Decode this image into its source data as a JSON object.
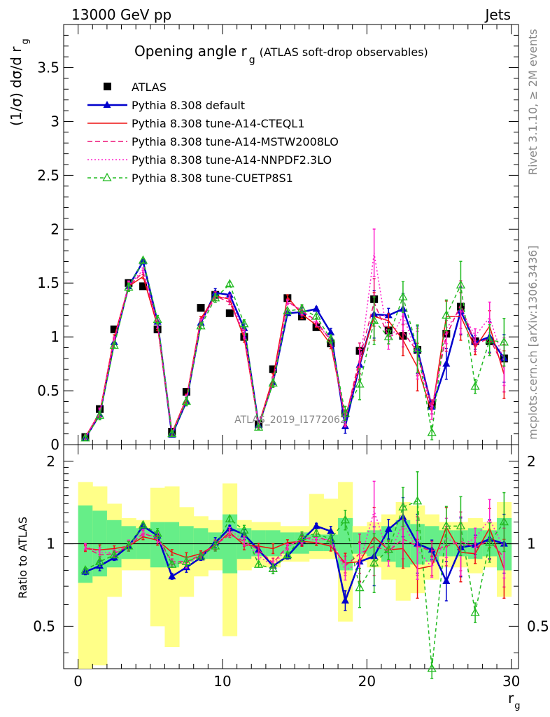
{
  "header": {
    "energy_label": "13000 GeV pp",
    "process_label": "Jets"
  },
  "side": {
    "rivet_label": "Rivet 3.1.10, ≥ 2M events",
    "mcplots_label": "mcplots.cern.ch [arXiv:1306.3436]"
  },
  "chart_data": [
    {
      "type": "line",
      "title": "Opening angle r",
      "title_subscript": "g",
      "title_suffix": "(ATLAS soft-drop observables)",
      "watermark": "ATLAS_2019_I1772062",
      "ylabel": "(1/σ) dσ/d r",
      "ylabel_subscript": "g",
      "xlim": [
        -1,
        30.5
      ],
      "ylim": [
        0,
        3.9
      ],
      "y_ticks": [
        0,
        0.5,
        1,
        1.5,
        2,
        2.5,
        3,
        3.5
      ],
      "y_tick_labels": [
        "0",
        "0.5",
        "1",
        "1.5",
        "2",
        "2.5",
        "3",
        "3.5"
      ],
      "legend_position": "top-left",
      "x": [
        0.5,
        1.5,
        2.5,
        3.5,
        4.5,
        5.5,
        6.5,
        7.5,
        8.5,
        9.5,
        10.5,
        11.5,
        12.5,
        13.5,
        14.5,
        15.5,
        16.5,
        17.5,
        18.5,
        19.5,
        20.5,
        21.5,
        22.5,
        23.5,
        24.5,
        25.5,
        26.5,
        27.5,
        28.5,
        29.5
      ],
      "series": [
        {
          "name": "ATLAS",
          "color": "#000000",
          "marker": "square",
          "values": [
            0.07,
            0.33,
            1.07,
            1.5,
            1.47,
            1.07,
            0.12,
            0.49,
            1.27,
            1.39,
            1.22,
            1.0,
            0.19,
            0.7,
            1.36,
            1.19,
            1.09,
            0.94,
            0.29,
            0.87,
            1.35,
            1.06,
            1.01,
            0.88,
            0.37,
            1.03,
            1.28,
            0.96,
            0.96,
            0.8
          ]
        },
        {
          "name": "Pythia 8.308 default",
          "color": "#0000cc",
          "marker": "triangle-filled",
          "dash": "",
          "values": [
            0.06,
            0.28,
            0.95,
            1.47,
            1.7,
            1.14,
            0.09,
            0.4,
            1.13,
            1.41,
            1.39,
            1.08,
            0.18,
            0.58,
            1.22,
            1.23,
            1.26,
            1.04,
            0.17,
            0.74,
            1.21,
            1.2,
            1.26,
            0.88,
            0.35,
            0.75,
            1.24,
            0.95,
            1.0,
            0.8
          ]
        },
        {
          "name": "Pythia 8.308 tune-A14-CTEQL1",
          "color": "#ee1111",
          "marker": "none",
          "dash": "",
          "values": [
            0.07,
            0.3,
            1.0,
            1.47,
            1.56,
            1.1,
            0.11,
            0.43,
            1.17,
            1.38,
            1.35,
            0.99,
            0.18,
            0.62,
            1.37,
            1.21,
            1.11,
            0.93,
            0.25,
            0.75,
            1.19,
            1.15,
            0.97,
            0.72,
            0.3,
            1.19,
            1.19,
            0.9,
            1.1,
            0.65
          ]
        },
        {
          "name": "Pythia 8.308 tune-A14-MSTW2008LO",
          "color": "#ee1177",
          "marker": "none",
          "dash": "7,4",
          "values": [
            0.07,
            0.29,
            0.97,
            1.47,
            1.6,
            1.12,
            0.1,
            0.42,
            1.15,
            1.38,
            1.32,
            1.02,
            0.18,
            0.59,
            1.33,
            1.24,
            1.15,
            0.96,
            0.24,
            0.8,
            1.32,
            1.0,
            1.05,
            0.86,
            0.35,
            1.01,
            1.3,
            0.93,
            0.99,
            0.71
          ]
        },
        {
          "name": "Pythia 8.308 tune-A14-NNPDF2.3LO",
          "color": "#ff22cc",
          "marker": "none",
          "dash": "2,3",
          "values": [
            0.07,
            0.3,
            0.98,
            1.48,
            1.62,
            1.12,
            0.1,
            0.42,
            1.14,
            1.36,
            1.37,
            1.03,
            0.17,
            0.58,
            1.32,
            1.25,
            1.12,
            0.98,
            0.23,
            0.74,
            1.78,
            0.95,
            1.2,
            0.83,
            0.3,
            1.08,
            1.25,
            1.01,
            1.18,
            0.77
          ]
        },
        {
          "name": "Pythia 8.308 tune-CUETP8S1",
          "color": "#22bb22",
          "marker": "triangle-open",
          "dash": "5,4",
          "values": [
            0.06,
            0.27,
            0.92,
            1.46,
            1.71,
            1.16,
            0.1,
            0.4,
            1.1,
            1.36,
            1.49,
            1.12,
            0.16,
            0.57,
            1.24,
            1.26,
            1.19,
            0.98,
            0.29,
            0.56,
            1.15,
            1.0,
            1.37,
            0.89,
            0.11,
            1.2,
            1.48,
            0.54,
            0.97,
            0.95
          ]
        }
      ]
    },
    {
      "type": "line",
      "ylabel": "Ratio to ATLAS",
      "xlabel": "r",
      "xlabel_subscript": "g",
      "xlim": [
        -1,
        30.5
      ],
      "ylim": [
        0.35,
        2.3
      ],
      "log_scale_y": true,
      "y_ticks": [
        0.5,
        1,
        2
      ],
      "y_tick_labels": [
        "0.5",
        "1",
        "2"
      ],
      "x_ticks": [
        0,
        10,
        20,
        30
      ],
      "x_tick_labels": [
        "0",
        "10",
        "20",
        "30"
      ],
      "reference_line": 1,
      "x": [
        0.5,
        1.5,
        2.5,
        3.5,
        4.5,
        5.5,
        6.5,
        7.5,
        8.5,
        9.5,
        10.5,
        11.5,
        12.5,
        13.5,
        14.5,
        15.5,
        16.5,
        17.5,
        18.5,
        19.5,
        20.5,
        21.5,
        22.5,
        23.5,
        24.5,
        25.5,
        26.5,
        27.5,
        28.5,
        29.5
      ],
      "uncertainty_bands": {
        "inner_color": "#66ee88",
        "outer_color": "#ffff88",
        "inner_lo": [
          0.72,
          0.76,
          0.82,
          0.88,
          0.88,
          0.82,
          0.82,
          0.86,
          0.88,
          0.88,
          0.78,
          0.88,
          0.9,
          0.9,
          0.92,
          0.92,
          0.94,
          0.94,
          0.8,
          0.92,
          0.9,
          0.86,
          0.82,
          0.84,
          0.86,
          0.9,
          0.9,
          0.88,
          0.9,
          0.8
        ],
        "inner_hi": [
          1.38,
          1.32,
          1.22,
          1.16,
          1.14,
          1.2,
          1.2,
          1.16,
          1.14,
          1.1,
          1.28,
          1.14,
          1.12,
          1.12,
          1.1,
          1.1,
          1.08,
          1.08,
          1.24,
          1.1,
          1.12,
          1.16,
          1.22,
          1.18,
          1.16,
          1.12,
          1.12,
          1.14,
          1.12,
          1.24
        ],
        "outer_lo": [
          0.3,
          0.36,
          0.64,
          0.8,
          0.8,
          0.5,
          0.42,
          0.64,
          0.76,
          0.8,
          0.46,
          0.8,
          0.82,
          0.82,
          0.86,
          0.86,
          0.88,
          0.88,
          0.52,
          0.86,
          0.82,
          0.74,
          0.62,
          0.66,
          0.74,
          0.82,
          0.82,
          0.78,
          0.82,
          0.64
        ],
        "outer_hi": [
          1.68,
          1.62,
          1.4,
          1.24,
          1.22,
          1.6,
          1.62,
          1.36,
          1.26,
          1.22,
          1.66,
          1.22,
          1.2,
          1.2,
          1.16,
          1.16,
          1.52,
          1.46,
          1.68,
          1.16,
          1.2,
          1.28,
          1.42,
          1.38,
          1.28,
          1.2,
          1.2,
          1.24,
          1.2,
          1.42
        ]
      },
      "series": [
        {
          "name": "Pythia 8.308 default",
          "values": [
            0.79,
            0.83,
            0.89,
            0.98,
            1.16,
            1.07,
            0.76,
            0.82,
            0.89,
            1.01,
            1.14,
            1.08,
            0.95,
            0.83,
            0.9,
            1.03,
            1.16,
            1.11,
            0.62,
            0.86,
            0.9,
            1.13,
            1.25,
            1.0,
            0.95,
            0.73,
            0.97,
            0.99,
            1.04,
            1.0
          ]
        },
        {
          "name": "Pythia 8.308 tune-A14-CTEQL1",
          "values": [
            0.96,
            0.95,
            0.96,
            0.98,
            1.06,
            1.03,
            0.93,
            0.89,
            0.92,
            0.99,
            1.1,
            0.99,
            0.98,
            0.96,
            1.01,
            1.02,
            1.01,
            0.98,
            0.85,
            0.86,
            1.06,
            0.95,
            0.96,
            0.81,
            0.83,
            1.15,
            0.93,
            0.92,
            1.14,
            0.81
          ]
        },
        {
          "name": "Pythia 8.308 tune-A14-MSTW2008LO",
          "values": [
            0.97,
            0.91,
            0.92,
            0.98,
            1.09,
            1.05,
            0.86,
            0.86,
            0.91,
            0.99,
            1.08,
            1.02,
            0.95,
            0.85,
            0.98,
            1.04,
            1.06,
            1.02,
            0.83,
            0.92,
            0.98,
            0.94,
            1.04,
            0.98,
            0.94,
            0.98,
            1.02,
            0.97,
            1.03,
            0.89
          ]
        },
        {
          "name": "Pythia 8.308 tune-A14-NNPDF2.3LO",
          "values": [
            0.98,
            0.93,
            0.93,
            0.99,
            1.1,
            1.05,
            0.85,
            0.85,
            0.9,
            0.98,
            1.12,
            1.03,
            0.9,
            0.83,
            0.97,
            1.05,
            1.03,
            1.04,
            0.8,
            0.85,
            1.32,
            0.9,
            1.19,
            0.95,
            0.82,
            1.05,
            0.98,
            1.05,
            1.23,
            0.96
          ]
        },
        {
          "name": "Pythia 8.308 tune-CUETP8S1",
          "values": [
            0.8,
            0.86,
            0.91,
            0.98,
            1.17,
            1.09,
            0.84,
            0.86,
            0.9,
            0.98,
            1.23,
            1.12,
            0.84,
            0.81,
            0.91,
            1.06,
            1.09,
            1.04,
            1.22,
            0.69,
            0.85,
            0.95,
            1.36,
            1.43,
            0.3,
            1.16,
            1.16,
            0.56,
            1.01,
            1.2
          ]
        }
      ]
    }
  ]
}
